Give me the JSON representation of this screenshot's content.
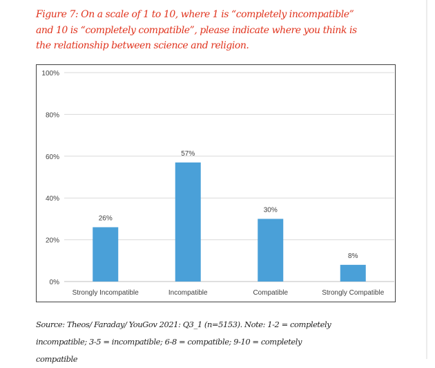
{
  "figure": {
    "title_lines": [
      "Figure 7: On a scale of 1 to 10, where 1 is “completely incompatible”",
      "and 10 is “completely compatible”, please indicate where you think is",
      "the relationship between science and religion."
    ],
    "source_lines": [
      "Source: Theos/ Faraday/ YouGov 2021: Q3_1 (n=5153). Note: 1-2 = completely",
      "incompatible; 3-5 = incompatible; 6-8 = compatible; 9-10 = completely",
      "compatible"
    ]
  },
  "colors": {
    "title": "#e0331d",
    "bar": "#4aa0d8",
    "grid": "#d9d9d9",
    "axis_text": "#404040"
  },
  "chart_data": {
    "type": "bar",
    "categories": [
      "Strongly Incompatible",
      "Incompatible",
      "Compatible",
      "Strongly Compatible"
    ],
    "values": [
      26,
      57,
      30,
      8
    ],
    "data_labels": [
      "26%",
      "57%",
      "30%",
      "8%"
    ],
    "ylim": [
      0,
      100
    ],
    "yticks": [
      0,
      20,
      40,
      60,
      80,
      100
    ],
    "ytick_labels": [
      "0%",
      "20%",
      "40%",
      "60%",
      "80%",
      "100%"
    ],
    "grid": true,
    "legend": false
  }
}
